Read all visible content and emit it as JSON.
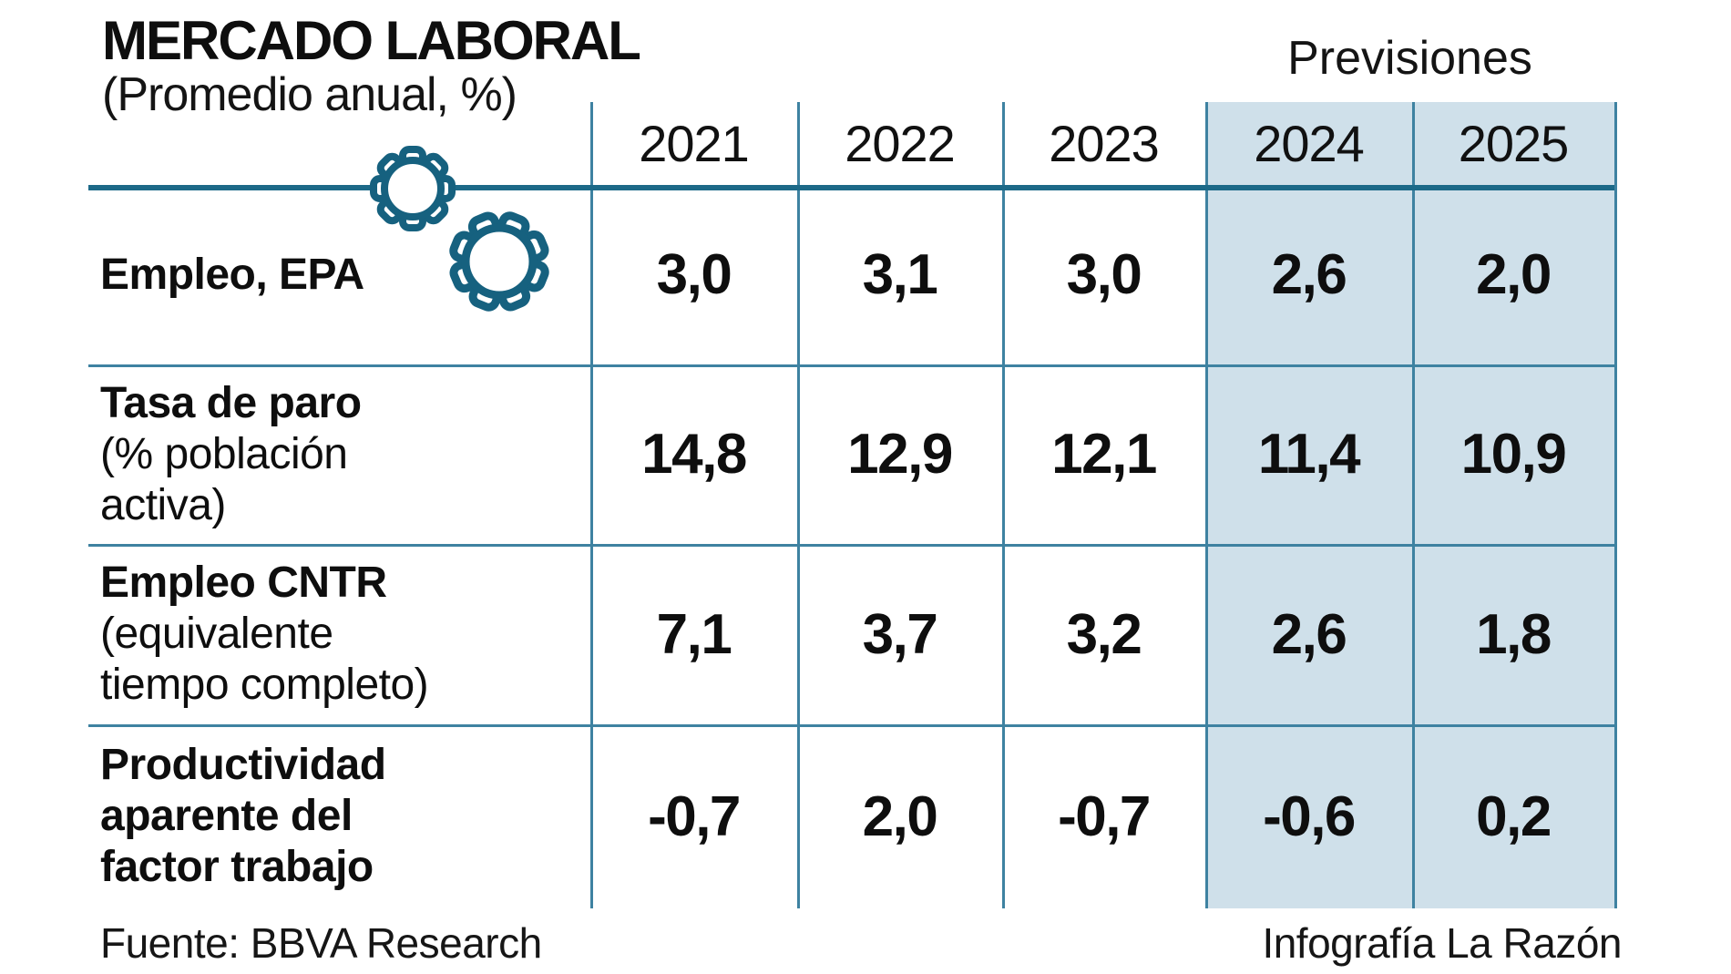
{
  "header": {
    "title": "MERCADO LABORAL",
    "subtitle": "(Promedio anual, %)",
    "forecast_label": "Previsiones"
  },
  "footer": {
    "source": "Fuente: BBVA Research",
    "credit": "Infografía La Razón"
  },
  "colors": {
    "shade": "#cfe0ea",
    "thick_line": "#1c6988",
    "thin_line": "#3e82a1",
    "gear": "#16617f",
    "text": "#111111"
  },
  "icons": [
    "gear-icon",
    "gear-icon"
  ],
  "chart_data": {
    "type": "table",
    "title": "MERCADO LABORAL (Promedio anual, %)",
    "columns": [
      "2021",
      "2022",
      "2023",
      "2024",
      "2025"
    ],
    "forecast_columns": [
      "2024",
      "2025"
    ],
    "rows": [
      {
        "label_lines": [
          {
            "text": "Empleo, EPA",
            "bold": true
          }
        ],
        "values": [
          "3,0",
          "3,1",
          "3,0",
          "2,6",
          "2,0"
        ]
      },
      {
        "label_lines": [
          {
            "text": "Tasa de paro",
            "bold": true
          },
          {
            "text": "(% población",
            "bold": false
          },
          {
            "text": "activa)",
            "bold": false
          }
        ],
        "values": [
          "14,8",
          "12,9",
          "12,1",
          "11,4",
          "10,9"
        ]
      },
      {
        "label_lines": [
          {
            "text": "Empleo CNTR",
            "bold": true
          },
          {
            "text": "(equivalente",
            "bold": false
          },
          {
            "text": "tiempo completo)",
            "bold": false
          }
        ],
        "values": [
          "7,1",
          "3,7",
          "3,2",
          "2,6",
          "1,8"
        ]
      },
      {
        "label_lines": [
          {
            "text": "Productividad",
            "bold": true
          },
          {
            "text": "aparente del",
            "bold": true
          },
          {
            "text": "factor trabajo",
            "bold": true
          }
        ],
        "values": [
          "-0,7",
          "2,0",
          "-0,7",
          "-0,6",
          "0,2"
        ]
      }
    ],
    "source": "Fuente: BBVA Research",
    "credit": "Infografía La Razón"
  }
}
